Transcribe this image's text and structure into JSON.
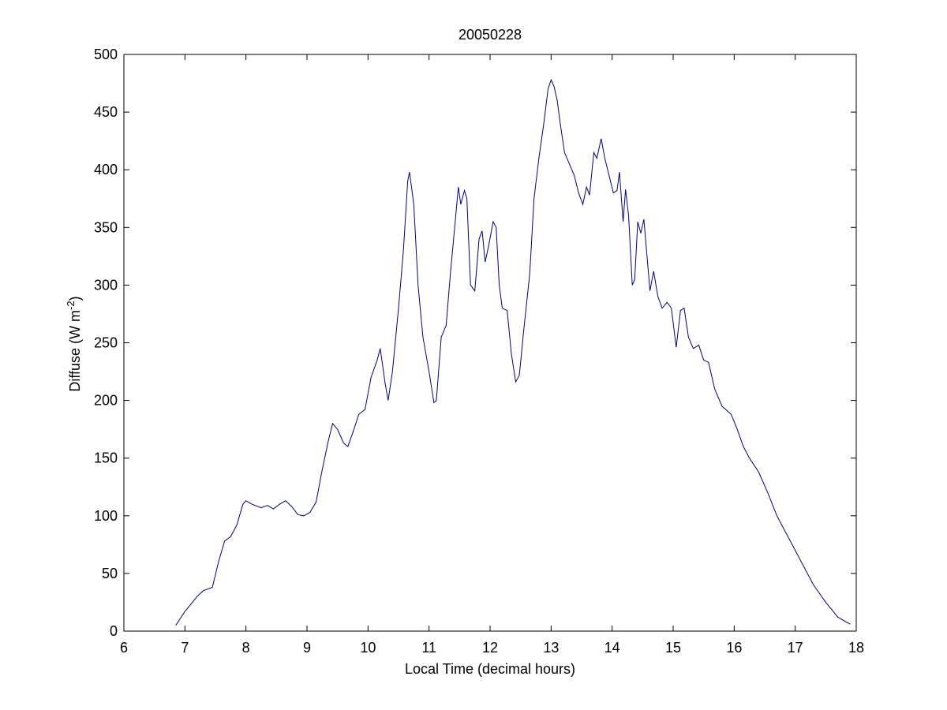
{
  "chart_data": {
    "type": "line",
    "title": "20050228",
    "xlabel": "Local Time (decimal hours)",
    "ylabel": {
      "text": "Diffuse (W m",
      "superscript": "-2",
      "suffix": ")"
    },
    "xlim": [
      6,
      18
    ],
    "xticks": [
      6,
      7,
      8,
      9,
      10,
      11,
      12,
      13,
      14,
      15,
      16,
      17,
      18
    ],
    "ylim": [
      0,
      500
    ],
    "yticks": [
      0,
      50,
      100,
      150,
      200,
      250,
      300,
      350,
      400,
      450,
      500
    ],
    "grid": false,
    "series": [
      {
        "color": "#00008b",
        "x": [
          6.85,
          7.0,
          7.2,
          7.3,
          7.45,
          7.55,
          7.65,
          7.75,
          7.85,
          7.95,
          8.0,
          8.1,
          8.25,
          8.35,
          8.45,
          8.55,
          8.65,
          8.75,
          8.85,
          8.95,
          9.05,
          9.15,
          9.25,
          9.35,
          9.42,
          9.5,
          9.6,
          9.67,
          9.75,
          9.85,
          9.95,
          10.05,
          10.15,
          10.2,
          10.28,
          10.33,
          10.4,
          10.5,
          10.58,
          10.65,
          10.68,
          10.75,
          10.82,
          10.9,
          11.0,
          11.08,
          11.12,
          11.2,
          11.28,
          11.35,
          11.42,
          11.48,
          11.52,
          11.58,
          11.62,
          11.68,
          11.75,
          11.82,
          11.87,
          11.92,
          11.98,
          12.05,
          12.1,
          12.15,
          12.2,
          12.28,
          12.35,
          12.42,
          12.48,
          12.55,
          12.65,
          12.72,
          12.8,
          12.88,
          12.95,
          13.0,
          13.05,
          13.1,
          13.15,
          13.22,
          13.3,
          13.38,
          13.45,
          13.52,
          13.58,
          13.63,
          13.7,
          13.75,
          13.82,
          13.88,
          13.95,
          14.02,
          14.08,
          14.12,
          14.18,
          14.22,
          14.27,
          14.33,
          14.37,
          14.42,
          14.47,
          14.52,
          14.58,
          14.62,
          14.68,
          14.75,
          14.82,
          14.9,
          14.97,
          15.05,
          15.12,
          15.18,
          15.25,
          15.33,
          15.42,
          15.5,
          15.58,
          15.68,
          15.8,
          15.95,
          16.05,
          16.15,
          16.25,
          16.4,
          16.55,
          16.7,
          16.85,
          17.0,
          17.15,
          17.3,
          17.5,
          17.7,
          17.9
        ],
        "values": [
          5,
          17,
          30,
          35,
          38,
          60,
          78,
          82,
          92,
          110,
          113,
          110,
          107,
          109,
          106,
          110,
          113,
          108,
          101,
          100,
          103,
          112,
          140,
          165,
          180,
          175,
          163,
          160,
          172,
          188,
          192,
          220,
          235,
          245,
          215,
          200,
          225,
          280,
          330,
          390,
          398,
          370,
          300,
          255,
          225,
          198,
          200,
          255,
          265,
          310,
          350,
          385,
          370,
          382,
          375,
          300,
          295,
          340,
          347,
          320,
          335,
          355,
          350,
          300,
          280,
          278,
          240,
          216,
          222,
          260,
          310,
          375,
          410,
          440,
          470,
          478,
          472,
          460,
          440,
          415,
          405,
          395,
          380,
          370,
          385,
          378,
          415,
          410,
          427,
          410,
          395,
          380,
          382,
          398,
          355,
          383,
          360,
          300,
          305,
          355,
          345,
          357,
          320,
          295,
          312,
          290,
          280,
          285,
          280,
          246,
          278,
          280,
          255,
          245,
          248,
          235,
          233,
          210,
          195,
          188,
          175,
          160,
          150,
          138,
          120,
          100,
          85,
          70,
          55,
          40,
          25,
          12,
          6
        ]
      }
    ]
  }
}
